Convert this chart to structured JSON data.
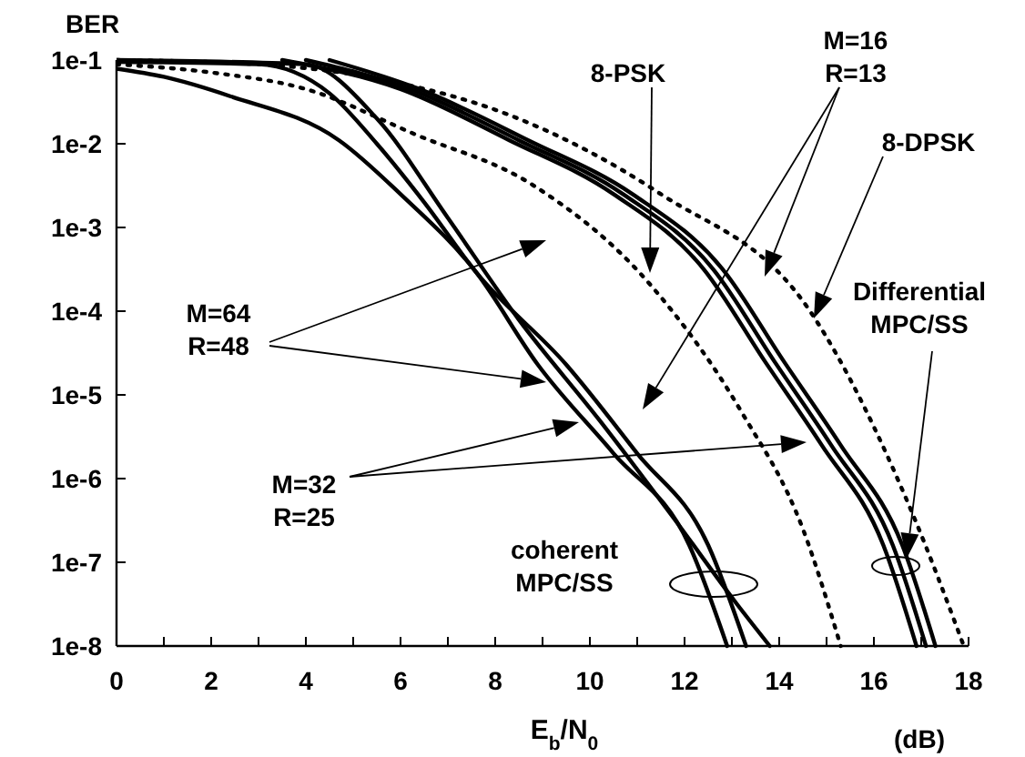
{
  "chart_data": {
    "type": "line",
    "ylabel": "BER",
    "xlabel": "E$_{b}$/N$_{0}$",
    "log": "y",
    "xlim": [
      0,
      18
    ],
    "ylim": [
      1e-08,
      0.1
    ],
    "xticks": [
      0,
      {
        "value": 1,
        "label": null
      },
      2,
      {
        "value": 3,
        "label": null
      },
      4,
      {
        "value": 5,
        "label": null
      },
      6,
      {
        "value": 7,
        "label": null
      },
      8,
      {
        "value": 9,
        "label": null
      },
      10,
      {
        "value": 11,
        "label": null
      },
      12,
      {
        "value": 13,
        "label": null
      },
      14,
      {
        "value": 15,
        "label": null
      },
      16,
      {
        "value": 17,
        "label": null
      },
      18
    ],
    "yticks": [
      {
        "value": 1e-08,
        "label": "1e-8"
      },
      {
        "value": 1e-07,
        "label": "1e-7"
      },
      {
        "value": 1e-06,
        "label": "1e-6"
      },
      {
        "value": 1e-05,
        "label": "1e-5"
      },
      {
        "value": 0.0001,
        "label": "1e-4"
      },
      {
        "value": 0.001,
        "label": "1e-3"
      },
      {
        "value": 0.01,
        "label": "1e-2"
      },
      {
        "value": 0.1,
        "label": "1e-1"
      }
    ],
    "series": [
      {
        "color": "#000000",
        "line_style": "solid",
        "x": [
          0,
          1,
          2.4,
          4.7,
          6,
          7.6,
          8.9,
          10.5,
          12.1,
          12.9
        ],
        "values": [
          0.079,
          0.063,
          0.037,
          0.011,
          0.0025,
          0.00029,
          2.3e-05,
          2e-06,
          1.6e-07,
          1e-08
        ]
      },
      {
        "color": "#000000",
        "line_style": "solid",
        "x": [
          0,
          3,
          4.5,
          5.5,
          6.5,
          7.6,
          9.5,
          11,
          12.5,
          13.3
        ],
        "values": [
          0.095,
          0.089,
          0.04,
          0.01,
          0.002,
          0.00029,
          2.3e-05,
          2e-06,
          1.6e-07,
          1e-08
        ]
      },
      {
        "color": "#000000",
        "line_style": "solid",
        "x": [
          0,
          4,
          5.5,
          7,
          8.5,
          10.2,
          11.8,
          13.1,
          13.8
        ],
        "values": [
          0.1,
          0.089,
          0.02,
          0.0013,
          7.9e-05,
          5e-06,
          3.2e-07,
          3.2e-08,
          1e-08
        ]
      },
      {
        "color": "#000000",
        "line_style": "solid",
        "x": [
          3.5,
          6,
          8.3,
          10.5,
          12.4,
          13.7,
          14.9,
          16.2,
          16.9
        ],
        "values": [
          0.1,
          0.045,
          0.011,
          0.0025,
          0.00032,
          2.5e-05,
          2.5e-06,
          1.6e-07,
          1e-08
        ]
      },
      {
        "color": "#000000",
        "line_style": "solid",
        "x": [
          4,
          6.2,
          8.5,
          10.7,
          12.6,
          13.9,
          15.1,
          16.4,
          17.1
        ],
        "values": [
          0.1,
          0.045,
          0.011,
          0.0025,
          0.00032,
          2.5e-05,
          2.5e-06,
          1.6e-07,
          1e-08
        ]
      },
      {
        "color": "#000000",
        "line_style": "solid",
        "x": [
          4.5,
          6.4,
          8.7,
          10.9,
          12.8,
          14.1,
          15.3,
          16.6,
          17.3
        ],
        "values": [
          0.1,
          0.045,
          0.011,
          0.0025,
          0.00032,
          2.5e-05,
          2.5e-06,
          1.6e-07,
          1e-08
        ]
      },
      {
        "color": "#000000",
        "line_style": "dotted",
        "x": [
          0,
          2,
          4,
          6.3,
          8.8,
          11.3,
          13.2,
          14.5,
          15.3
        ],
        "values": [
          0.089,
          0.071,
          0.045,
          0.013,
          0.0032,
          0.0002,
          6.3e-06,
          2.5e-07,
          1e-08
        ]
      },
      {
        "color": "#000000",
        "line_style": "dotted",
        "x": [
          0,
          3,
          5.5,
          8.3,
          11.5,
          14.7,
          16.8,
          17.9
        ],
        "values": [
          0.1,
          0.089,
          0.06,
          0.022,
          0.0025,
          9.1e-05,
          4e-07,
          1e-08
        ]
      }
    ],
    "annotations": [
      "8-PSK",
      "M=16\nR=13",
      "8-DPSK",
      "Differential\nMPC/SS",
      "M=64\nR=48",
      "M=32\nR=25",
      "coherent\nMPC/SS",
      "(dB)"
    ]
  }
}
